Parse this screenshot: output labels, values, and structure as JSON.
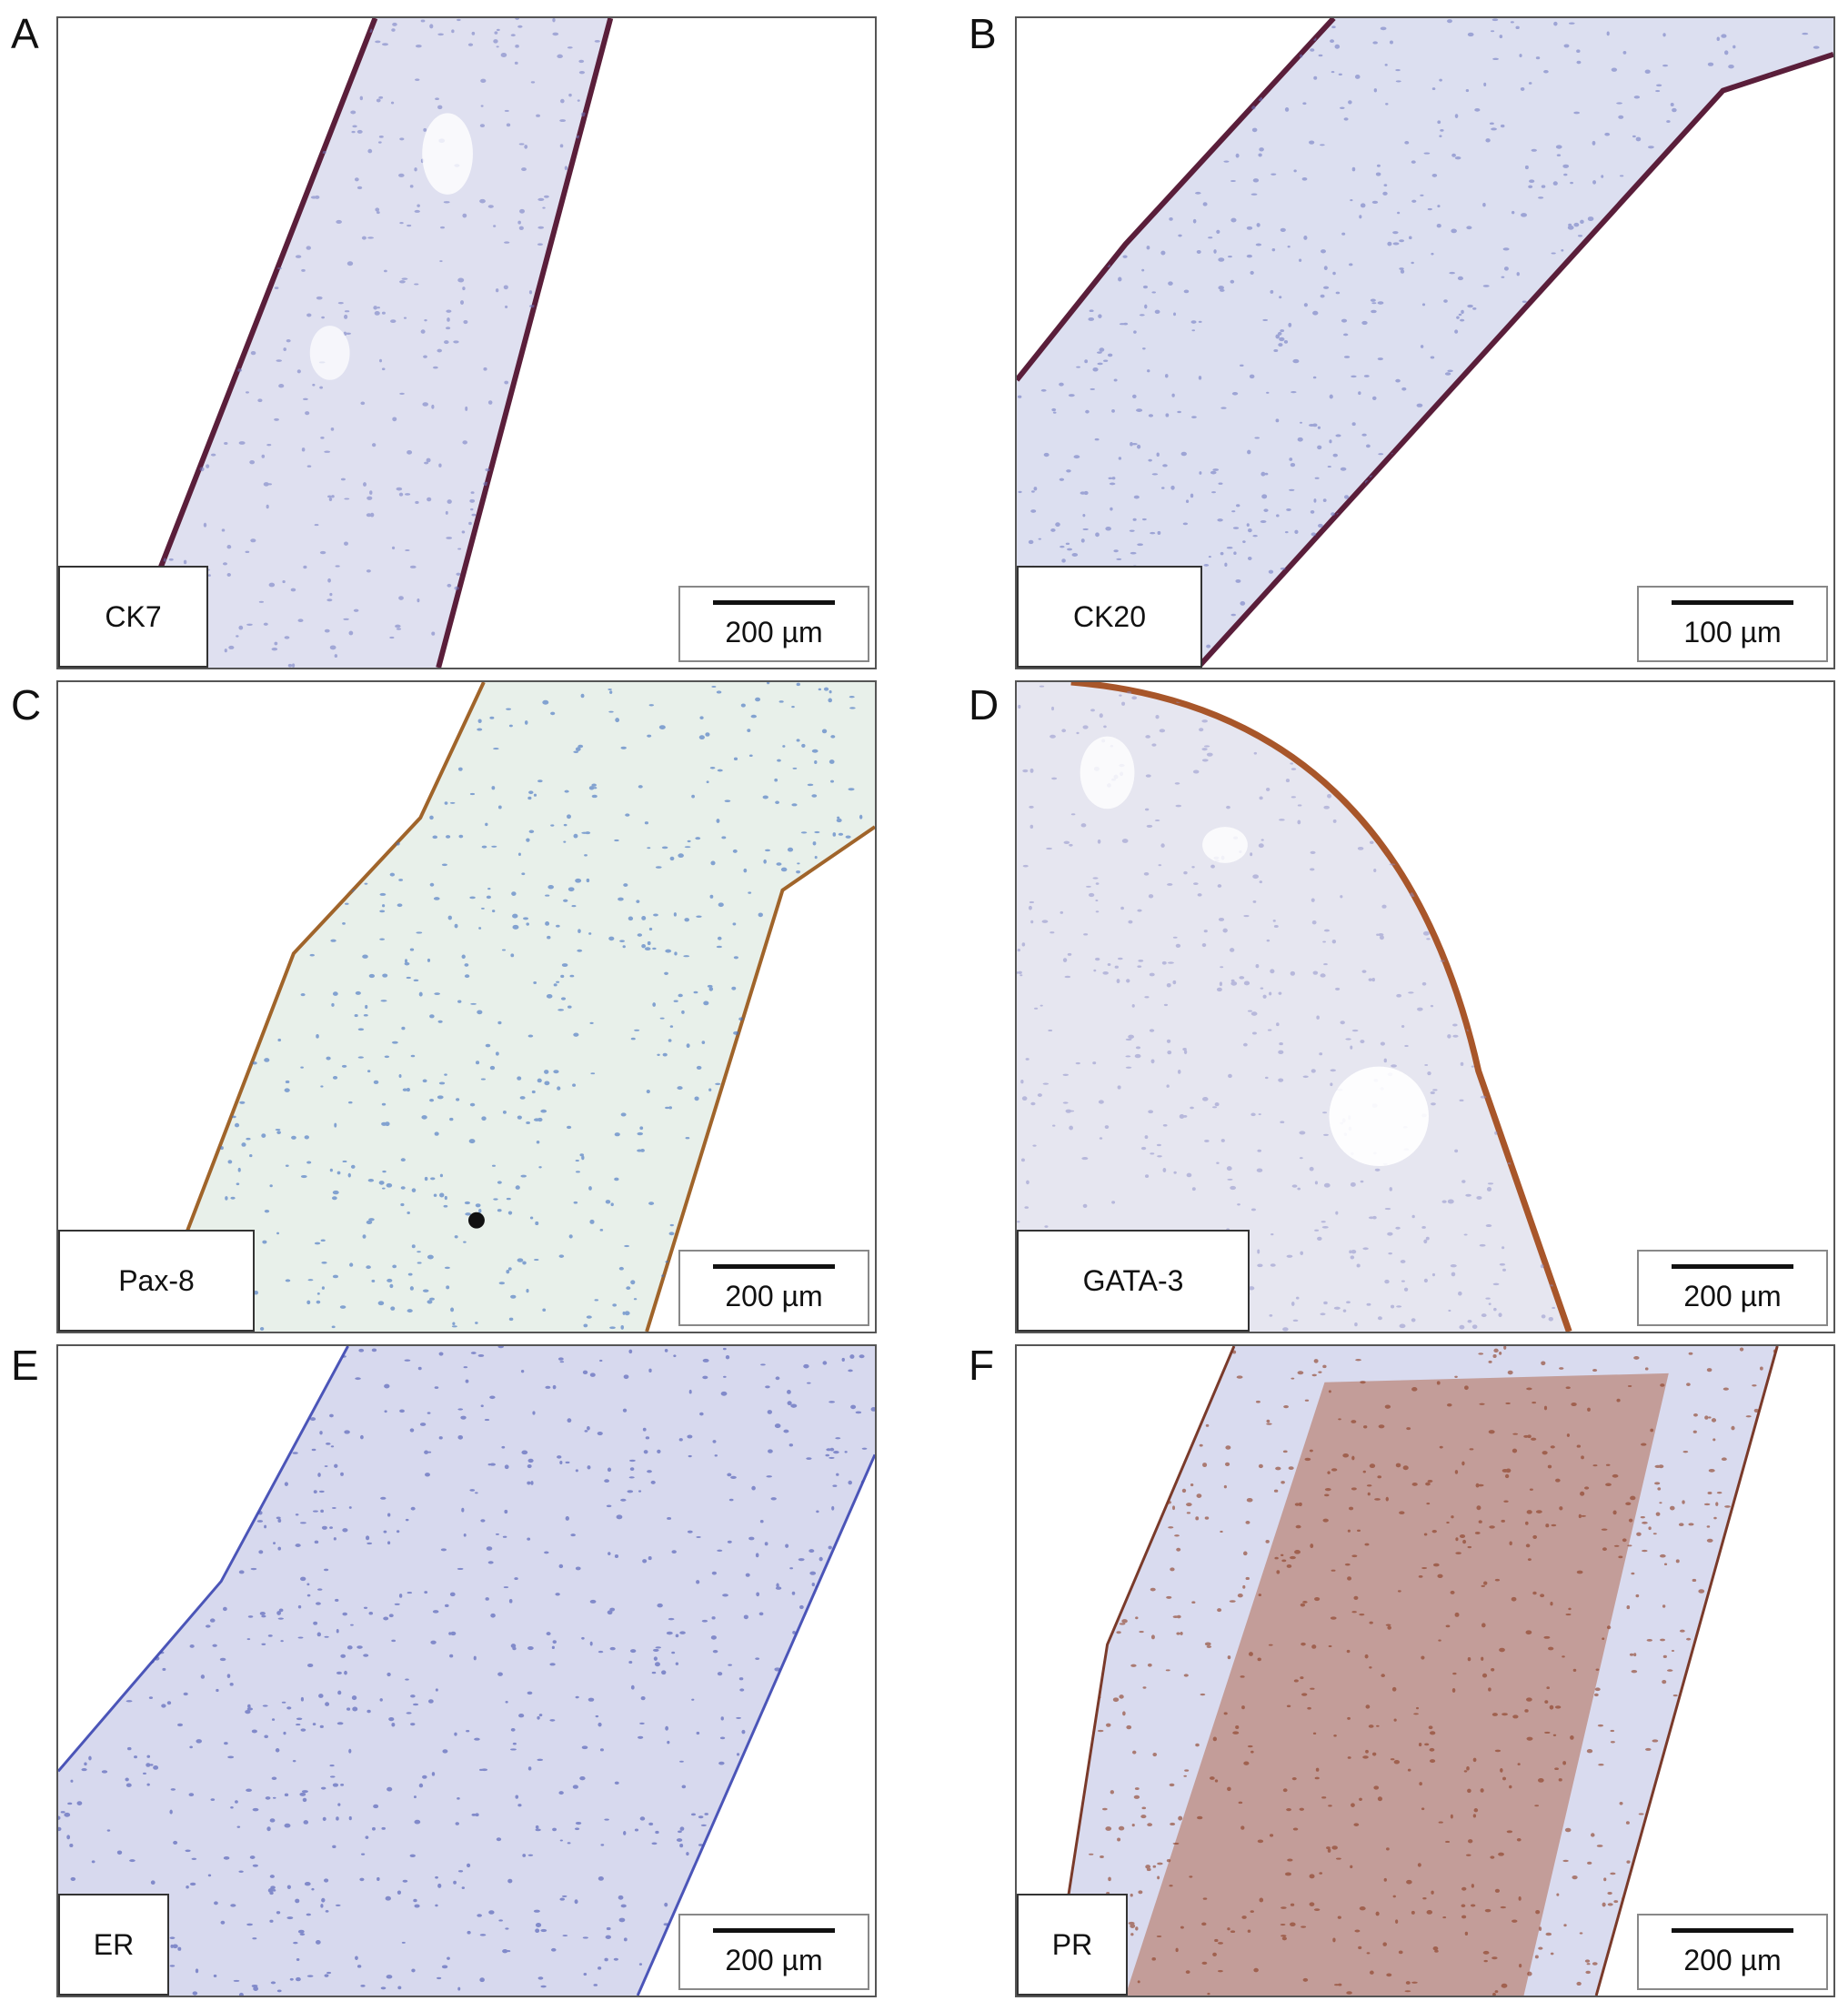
{
  "panels": [
    {
      "letter": "A",
      "stain": "CK7",
      "scale": "200 µm",
      "bg": "#dfe0f0",
      "edge": "#5a1e3a",
      "stroma": "#6f79c2"
    },
    {
      "letter": "B",
      "stain": "CK20",
      "scale": "100 µm",
      "bg": "#dcdff0",
      "edge": "#5a1e3a",
      "stroma": "#6a74c0"
    },
    {
      "letter": "C",
      "stain": "Pax-8",
      "scale": "200 µm",
      "bg": "#e8f0ea",
      "edge": "#a0642a",
      "stroma": "#3f6fc0"
    },
    {
      "letter": "D",
      "stain": "GATA-3",
      "scale": "200 µm",
      "bg": "#e6e6f0",
      "edge": "#a8562a",
      "stroma": "#8a8cc8"
    },
    {
      "letter": "E",
      "stain": "ER",
      "scale": "200 µm",
      "bg": "#d7d9ee",
      "edge": "#4b55b8",
      "stroma": "#3c4aae"
    },
    {
      "letter": "F",
      "stain": "PR",
      "scale": "200 µm",
      "bg": "#d9dbef",
      "edge": "#7a3a2a",
      "stroma": "#8a3a1e"
    }
  ]
}
